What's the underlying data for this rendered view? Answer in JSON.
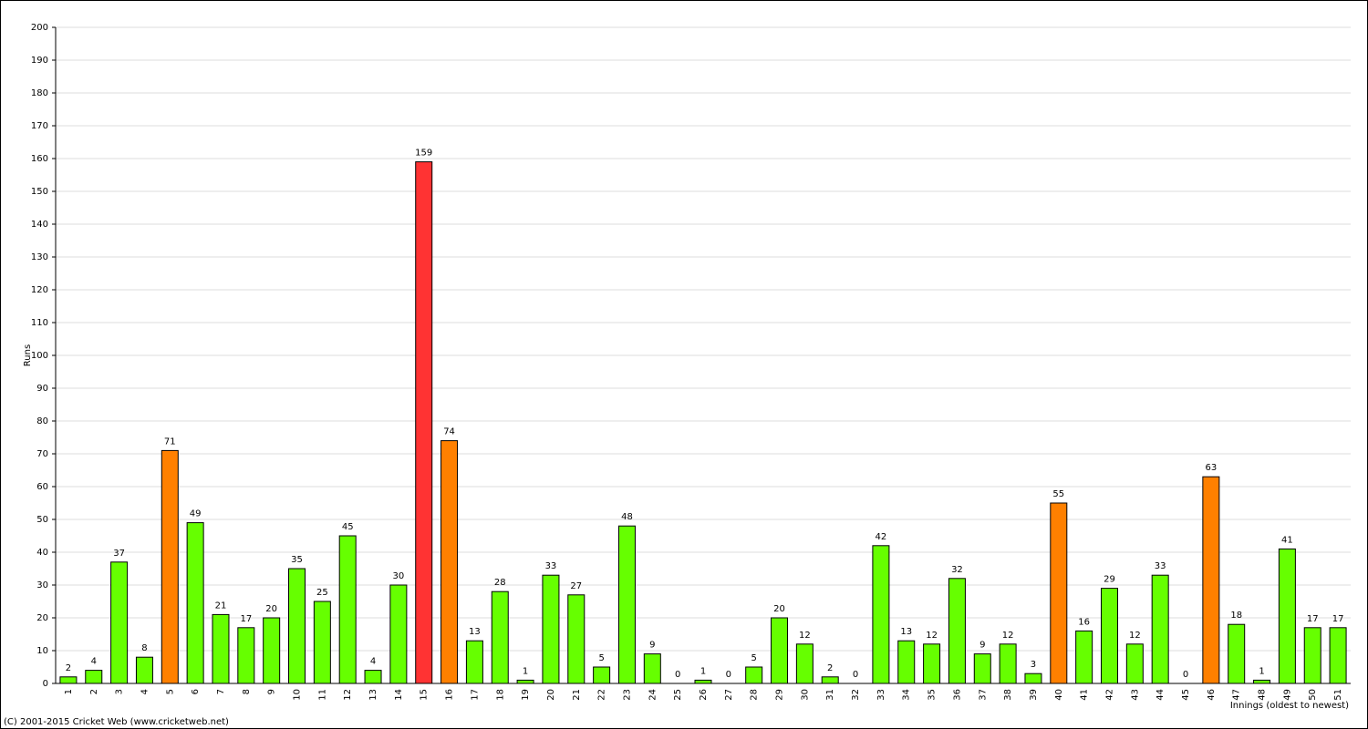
{
  "chart_data": {
    "type": "bar",
    "y_label": "Runs",
    "x_label": "Innings (oldest to newest)",
    "footer": "(C) 2001-2015 Cricket Web (www.cricketweb.net)",
    "categories": [
      "1",
      "2",
      "3",
      "4",
      "5",
      "6",
      "7",
      "8",
      "9",
      "10",
      "11",
      "12",
      "13",
      "14",
      "15",
      "16",
      "17",
      "18",
      "19",
      "20",
      "21",
      "22",
      "23",
      "24",
      "25",
      "26",
      "27",
      "28",
      "29",
      "30",
      "31",
      "32",
      "33",
      "34",
      "35",
      "36",
      "37",
      "38",
      "39",
      "40",
      "41",
      "42",
      "43",
      "44",
      "45",
      "46",
      "47",
      "48",
      "49",
      "50",
      "51"
    ],
    "values": [
      2,
      4,
      37,
      8,
      71,
      49,
      21,
      17,
      20,
      35,
      25,
      45,
      4,
      30,
      159,
      74,
      13,
      28,
      1,
      33,
      27,
      5,
      48,
      9,
      0,
      1,
      0,
      5,
      20,
      12,
      2,
      0,
      42,
      13,
      12,
      32,
      9,
      12,
      3,
      55,
      16,
      29,
      12,
      33,
      0,
      63,
      18,
      1,
      41,
      17,
      17
    ],
    "colors": [
      "#66ff00",
      "#66ff00",
      "#66ff00",
      "#66ff00",
      "#ff8000",
      "#66ff00",
      "#66ff00",
      "#66ff00",
      "#66ff00",
      "#66ff00",
      "#66ff00",
      "#66ff00",
      "#66ff00",
      "#66ff00",
      "#ff3333",
      "#ff8000",
      "#66ff00",
      "#66ff00",
      "#66ff00",
      "#66ff00",
      "#66ff00",
      "#66ff00",
      "#66ff00",
      "#66ff00",
      "#66ff00",
      "#66ff00",
      "#66ff00",
      "#66ff00",
      "#66ff00",
      "#66ff00",
      "#66ff00",
      "#66ff00",
      "#66ff00",
      "#66ff00",
      "#66ff00",
      "#66ff00",
      "#66ff00",
      "#66ff00",
      "#66ff00",
      "#ff8000",
      "#66ff00",
      "#66ff00",
      "#66ff00",
      "#66ff00",
      "#66ff00",
      "#ff8000",
      "#66ff00",
      "#66ff00",
      "#66ff00",
      "#66ff00",
      "#66ff00"
    ],
    "value_label_color": "#000080",
    "ylim": [
      0,
      200
    ],
    "yticks": [
      0,
      10,
      20,
      30,
      40,
      50,
      60,
      70,
      80,
      90,
      100,
      110,
      120,
      130,
      140,
      150,
      160,
      170,
      180,
      190,
      200
    ],
    "grid": true
  }
}
